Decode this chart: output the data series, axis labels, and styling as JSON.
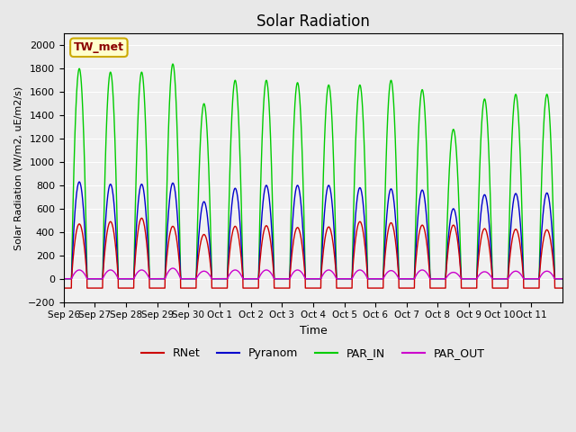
{
  "title": "Solar Radiation",
  "ylabel": "Solar Radiation (W/m2, uE/m2/s)",
  "xlabel": "Time",
  "ylim": [
    -200,
    2100
  ],
  "yticks": [
    -200,
    0,
    200,
    400,
    600,
    800,
    1000,
    1200,
    1400,
    1600,
    1800,
    2000
  ],
  "bg_color": "#e8e8e8",
  "plot_bg": "#f0f0f0",
  "legend_label": "TW_met",
  "line_colors": {
    "RNet": "#cc0000",
    "Pyranom": "#0000cc",
    "PAR_IN": "#00cc00",
    "PAR_OUT": "#cc00cc"
  },
  "x_tick_labels": [
    "Sep 26",
    "Sep 27",
    "Sep 28",
    "Sep 29",
    "Sep 30",
    "Oct 1",
    "Oct 2",
    "Oct 3",
    "Oct 4",
    "Oct 5",
    "Oct 6",
    "Oct 7",
    "Oct 8",
    "Oct 9",
    "Oct 10",
    "Oct 11"
  ],
  "n_days": 16,
  "peaks": {
    "PAR_IN": [
      1800,
      1770,
      1770,
      1840,
      1500,
      1700,
      1700,
      1680,
      1660,
      1660,
      1700,
      1620,
      1280,
      1540,
      1580,
      1580
    ],
    "Pyranom": [
      830,
      810,
      810,
      820,
      660,
      775,
      800,
      800,
      800,
      780,
      770,
      760,
      600,
      720,
      730,
      735
    ],
    "RNet": [
      470,
      490,
      520,
      450,
      380,
      450,
      455,
      440,
      445,
      490,
      480,
      460,
      460,
      430,
      425,
      420
    ],
    "PAR_OUT": [
      75,
      75,
      75,
      90,
      65,
      75,
      75,
      75,
      75,
      75,
      70,
      75,
      55,
      60,
      65,
      65
    ]
  },
  "rnet_night": -80
}
